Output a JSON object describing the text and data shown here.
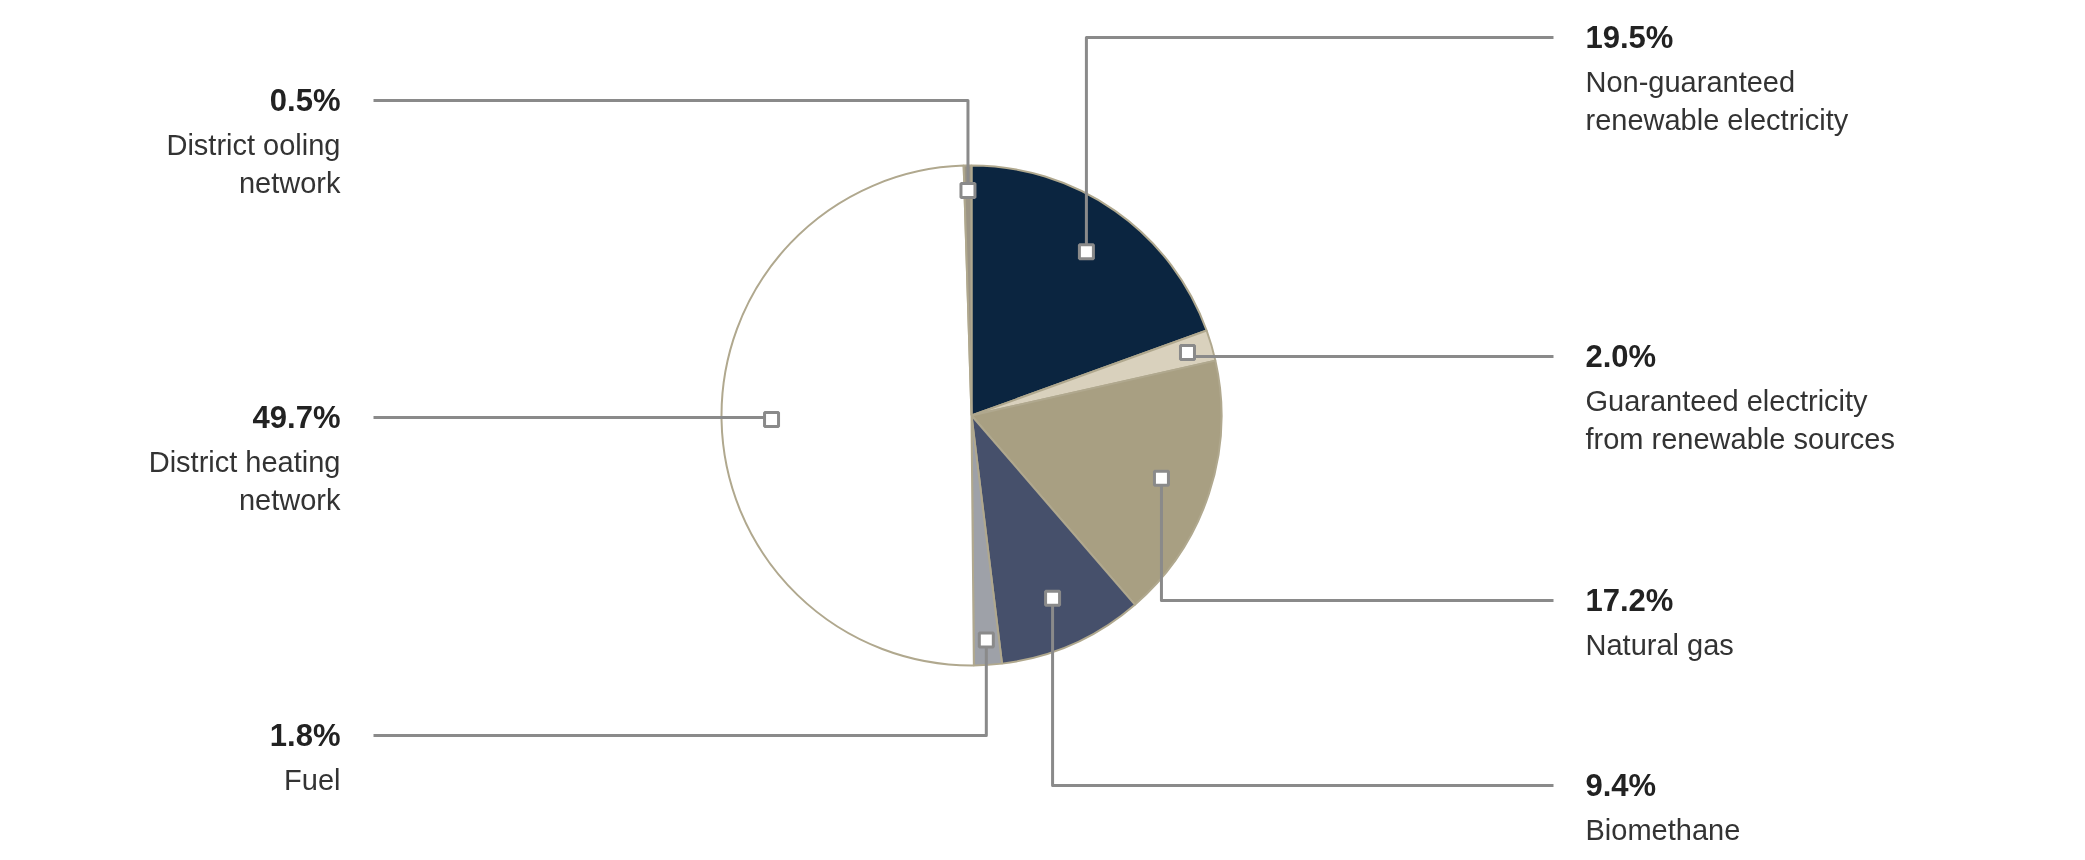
{
  "chart_data": {
    "type": "pie",
    "categories": [
      "Non-guaranteed\nrenewable electricity",
      "Guaranteed electricity\nfrom renewable sources",
      "Natural gas",
      "Biomethane",
      "Fuel",
      "District heating\nnetwork",
      "District ooling\nnetwork"
    ],
    "values": [
      19.5,
      2.0,
      17.2,
      9.4,
      1.8,
      49.7,
      0.5
    ],
    "value_labels": [
      "19.5%",
      "2.0%",
      "17.2%",
      "9.4%",
      "1.8%",
      "49.7%",
      "0.5%"
    ],
    "colors": [
      "#0b2540",
      "#d9d1bd",
      "#a89f82",
      "#46506b",
      "#9ea1a8",
      "#ffffff",
      "#9c9585"
    ]
  }
}
